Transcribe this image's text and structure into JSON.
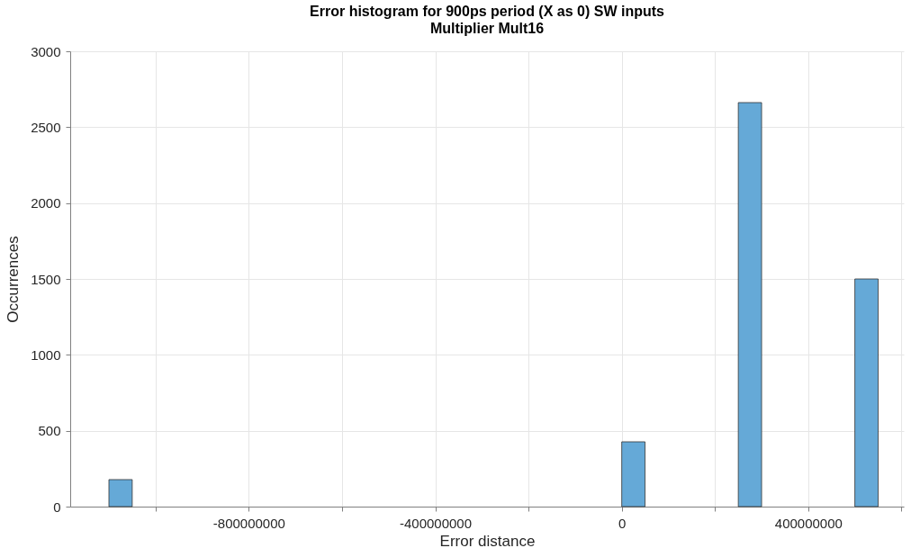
{
  "chart_data": {
    "type": "histogram",
    "title": "Error histogram for 900ps period (X as 0) SW inputs",
    "subtitle": "Multiplier Mult16",
    "xlabel": "Error distance",
    "ylabel": "Occurrences",
    "color": "#65a9d7",
    "bins": [
      -1100000000,
      -1050000000,
      -1000000000,
      -950000000,
      -900000000,
      -850000000,
      -800000000,
      -750000000,
      -700000000,
      -650000000,
      -600000000,
      -550000000,
      -500000000,
      -450000000,
      -400000000,
      -350000000,
      -300000000,
      -250000000,
      -200000000,
      -150000000,
      -100000000,
      -50000000,
      0,
      50000000,
      100000000,
      150000000,
      200000000,
      250000000,
      300000000,
      350000000,
      400000000,
      450000000,
      500000000,
      550000000
    ],
    "values": [
      178,
      0,
      0,
      0,
      0,
      0,
      0,
      0,
      0,
      0,
      0,
      0,
      0,
      0,
      0,
      0,
      0,
      0,
      0,
      0,
      0,
      0,
      427,
      0,
      0,
      0,
      0,
      2662,
      0,
      0,
      0,
      0,
      1500
    ],
    "xlim": [
      -1183000000,
      605000000
    ],
    "xticks": [
      {
        "value": -1000000000,
        "label": null
      },
      -800000000,
      {
        "value": -600000000,
        "label": null
      },
      -400000000,
      {
        "value": -200000000,
        "label": null
      },
      0,
      {
        "value": 200000000,
        "label": null
      },
      400000000,
      {
        "value": 600000000,
        "label": null
      }
    ],
    "ylim": [
      0,
      3000
    ],
    "yticks": [
      0,
      500,
      1000,
      1500,
      2000,
      2500,
      3000
    ],
    "grid": true
  }
}
